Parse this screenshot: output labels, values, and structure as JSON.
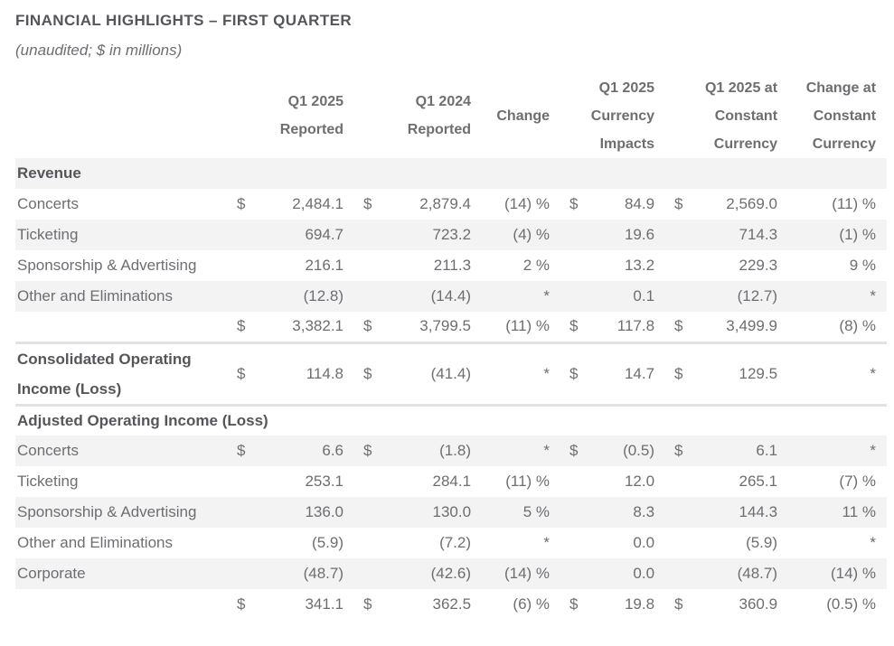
{
  "title": "FINANCIAL HIGHLIGHTS – FIRST QUARTER",
  "subtitle": "(unaudited; $ in millions)",
  "colors": {
    "text": "#6d6e71",
    "heading": "#54565a",
    "stripe": "#f3f3f4",
    "border": "#e2e2e3",
    "background": "#ffffff"
  },
  "table": {
    "column_headers": [
      {
        "lines": [
          "Q1 2025",
          "Reported"
        ],
        "span": 2
      },
      {
        "lines": [
          "Q1 2024",
          "Reported"
        ],
        "span": 2
      },
      {
        "lines": [
          "Change"
        ],
        "span": 1
      },
      {
        "lines": [
          "Q1 2025",
          "Currency",
          "Impacts"
        ],
        "span": 2
      },
      {
        "lines": [
          "Q1 2025 at",
          "Constant",
          "Currency"
        ],
        "span": 2
      },
      {
        "lines": [
          "Change at",
          "Constant",
          "Currency"
        ],
        "span": 1
      }
    ],
    "rows": [
      {
        "kind": "section",
        "label": "Revenue",
        "shaded": true
      },
      {
        "kind": "data",
        "label": "Concerts",
        "shaded": false,
        "cells": [
          "$",
          "2,484.1",
          "$",
          "2,879.4",
          "(14) %",
          "$",
          "84.9",
          "$",
          "2,569.0",
          "(11) %"
        ]
      },
      {
        "kind": "data",
        "label": "Ticketing",
        "shaded": true,
        "cells": [
          "",
          "694.7",
          "",
          "723.2",
          "(4) %",
          "",
          "19.6",
          "",
          "714.3",
          "(1) %"
        ]
      },
      {
        "kind": "data",
        "label": "Sponsorship & Advertising",
        "shaded": false,
        "cells": [
          "",
          "216.1",
          "",
          "211.3",
          "2 %",
          "",
          "13.2",
          "",
          "229.3",
          "9 %"
        ]
      },
      {
        "kind": "data",
        "label": "Other and Eliminations",
        "shaded": true,
        "cells": [
          "",
          "(12.8)",
          "",
          "(14.4)",
          "*",
          "",
          "0.1",
          "",
          "(12.7)",
          "*"
        ]
      },
      {
        "kind": "total",
        "label": "",
        "shaded": false,
        "cells": [
          "$",
          "3,382.1",
          "$",
          "3,799.5",
          "(11) %",
          "$",
          "117.8",
          "$",
          "3,499.9",
          "(8) %"
        ]
      },
      {
        "kind": "data",
        "label": "Consolidated Operating Income (Loss)",
        "shaded": false,
        "bold": true,
        "tall": true,
        "separated": true,
        "cells": [
          "$",
          "114.8",
          "$",
          "(41.4)",
          "*",
          "$",
          "14.7",
          "$",
          "129.5",
          "*"
        ]
      },
      {
        "kind": "section",
        "label": "Adjusted Operating Income (Loss)",
        "shaded": false
      },
      {
        "kind": "data",
        "label": "Concerts",
        "shaded": true,
        "cells": [
          "$",
          "6.6",
          "$",
          "(1.8)",
          "*",
          "$",
          "(0.5)",
          "$",
          "6.1",
          "*"
        ]
      },
      {
        "kind": "data",
        "label": "Ticketing",
        "shaded": false,
        "cells": [
          "",
          "253.1",
          "",
          "284.1",
          "(11) %",
          "",
          "12.0",
          "",
          "265.1",
          "(7) %"
        ]
      },
      {
        "kind": "data",
        "label": "Sponsorship & Advertising",
        "shaded": true,
        "cells": [
          "",
          "136.0",
          "",
          "130.0",
          "5 %",
          "",
          "8.3",
          "",
          "144.3",
          "11 %"
        ]
      },
      {
        "kind": "data",
        "label": "Other and Eliminations",
        "shaded": false,
        "cells": [
          "",
          "(5.9)",
          "",
          "(7.2)",
          "*",
          "",
          "0.0",
          "",
          "(5.9)",
          "*"
        ]
      },
      {
        "kind": "data",
        "label": "Corporate",
        "shaded": true,
        "cells": [
          "",
          "(48.7)",
          "",
          "(42.6)",
          "(14) %",
          "",
          "0.0",
          "",
          "(48.7)",
          "(14) %"
        ]
      },
      {
        "kind": "total",
        "label": "",
        "shaded": false,
        "cells": [
          "$",
          "341.1",
          "$",
          "362.5",
          "(6) %",
          "$",
          "19.8",
          "$",
          "360.9",
          "(0.5) %"
        ]
      }
    ]
  }
}
